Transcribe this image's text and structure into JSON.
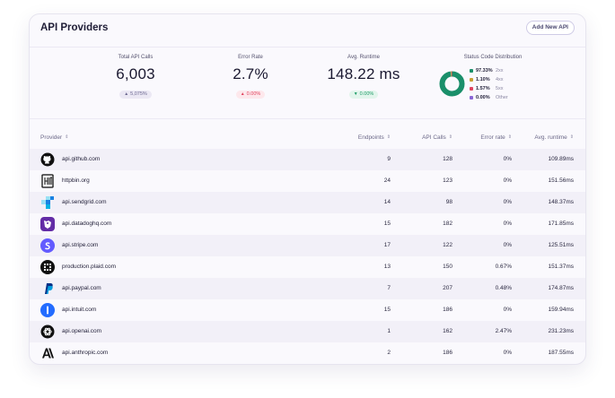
{
  "header": {
    "title": "API Providers",
    "add_button_label": "Add New API"
  },
  "stats": {
    "total_calls": {
      "label": "Total API Calls",
      "value": "6,003",
      "delta": "5,075%"
    },
    "error_rate": {
      "label": "Error Rate",
      "value": "2.7%",
      "delta": "0.00%"
    },
    "avg_runtime": {
      "label": "Avg. Runtime",
      "value": "148.22 ms",
      "delta": "0.00%"
    },
    "status_distribution": {
      "label": "Status Code Distribution",
      "items": [
        {
          "pct": "97.33%",
          "name": "2xx",
          "value": 97.33,
          "color": "#1a8f6a"
        },
        {
          "pct": "1.10%",
          "name": "4xx",
          "value": 1.1,
          "color": "#c7a033"
        },
        {
          "pct": "1.57%",
          "name": "5xx",
          "value": 1.57,
          "color": "#e0445f"
        },
        {
          "pct": "0.00%",
          "name": "Other",
          "value": 0.0,
          "color": "#8b67d6"
        }
      ]
    }
  },
  "table": {
    "columns": {
      "provider": "Provider",
      "endpoints": "Endpoints",
      "api_calls": "API Calls",
      "error_rate": "Error rate",
      "avg_runtime": "Avg. runtime"
    },
    "rows": [
      {
        "provider": "api.github.com",
        "endpoints": "9",
        "api_calls": "128",
        "error_rate": "0%",
        "avg_runtime": "109.89ms",
        "icon": "github-icon"
      },
      {
        "provider": "httpbin.org",
        "endpoints": "24",
        "api_calls": "123",
        "error_rate": "0%",
        "avg_runtime": "151.56ms",
        "icon": "httpbin-icon"
      },
      {
        "provider": "api.sendgrid.com",
        "endpoints": "14",
        "api_calls": "98",
        "error_rate": "0%",
        "avg_runtime": "148.37ms",
        "icon": "sendgrid-icon"
      },
      {
        "provider": "api.datadoghq.com",
        "endpoints": "15",
        "api_calls": "182",
        "error_rate": "0%",
        "avg_runtime": "171.85ms",
        "icon": "datadog-icon"
      },
      {
        "provider": "api.stripe.com",
        "endpoints": "17",
        "api_calls": "122",
        "error_rate": "0%",
        "avg_runtime": "125.51ms",
        "icon": "stripe-icon"
      },
      {
        "provider": "production.plaid.com",
        "endpoints": "13",
        "api_calls": "150",
        "error_rate": "0.67%",
        "avg_runtime": "151.37ms",
        "icon": "plaid-icon"
      },
      {
        "provider": "api.paypal.com",
        "endpoints": "7",
        "api_calls": "207",
        "error_rate": "0.48%",
        "avg_runtime": "174.87ms",
        "icon": "paypal-icon"
      },
      {
        "provider": "api.intuit.com",
        "endpoints": "15",
        "api_calls": "186",
        "error_rate": "0%",
        "avg_runtime": "159.94ms",
        "icon": "intuit-icon"
      },
      {
        "provider": "api.openai.com",
        "endpoints": "1",
        "api_calls": "162",
        "error_rate": "2.47%",
        "avg_runtime": "231.23ms",
        "icon": "openai-icon"
      },
      {
        "provider": "api.anthropic.com",
        "endpoints": "2",
        "api_calls": "186",
        "error_rate": "0%",
        "avg_runtime": "187.55ms",
        "icon": "anthropic-icon"
      }
    ]
  }
}
